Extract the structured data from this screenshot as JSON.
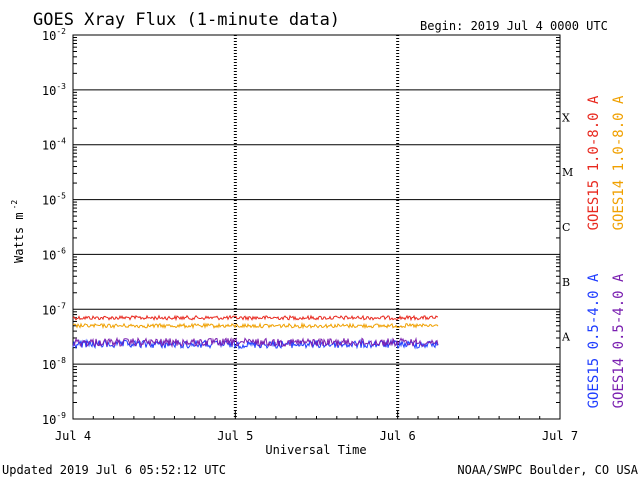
{
  "header": {
    "title": "GOES Xray Flux (1-minute data)",
    "begin": "Begin:  2019 Jul 4 0000 UTC"
  },
  "footer": {
    "updated": "Updated 2019 Jul  6 05:52:12 UTC",
    "credit": "NOAA/SWPC Boulder, CO USA"
  },
  "chart_data": {
    "type": "line",
    "title": "GOES Xray Flux (1-minute data)",
    "xlabel": "Universal Time",
    "ylabel": "Watts m-2",
    "ylabel_base": "Watts m",
    "ylabel_exp": "-2",
    "y_scale": "log",
    "ylim": [
      1e-09,
      0.01
    ],
    "y_ticks": [
      {
        "base": "10",
        "exp": "-2"
      },
      {
        "base": "10",
        "exp": "-3"
      },
      {
        "base": "10",
        "exp": "-4"
      },
      {
        "base": "10",
        "exp": "-5"
      },
      {
        "base": "10",
        "exp": "-6"
      },
      {
        "base": "10",
        "exp": "-7"
      },
      {
        "base": "10",
        "exp": "-8"
      },
      {
        "base": "10",
        "exp": "-9"
      }
    ],
    "xlim": [
      "2019-07-04",
      "2019-07-07"
    ],
    "x_ticks": [
      "Jul 4",
      "Jul 5",
      "Jul 6",
      "Jul 7"
    ],
    "flare_classes": [
      "X",
      "M",
      "C",
      "B",
      "A"
    ],
    "grid": true,
    "series": [
      {
        "name": "GOES15 1.0-8.0 A",
        "color": "#e8281e",
        "level": 7e-08,
        "end": "2019-07-06 06:00"
      },
      {
        "name": "GOES14 1.0-8.0 A",
        "color": "#f0a000",
        "level": 5e-08,
        "end": "2019-07-06 06:00"
      },
      {
        "name": "GOES15 0.5-4.0 A",
        "color": "#1e3cff",
        "level": 2.3e-08,
        "end": "2019-07-06 06:00"
      },
      {
        "name": "GOES14 0.5-4.0 A",
        "color": "#7a1fb0",
        "level": 2.5e-08,
        "end": "2019-07-06 06:00"
      }
    ]
  }
}
